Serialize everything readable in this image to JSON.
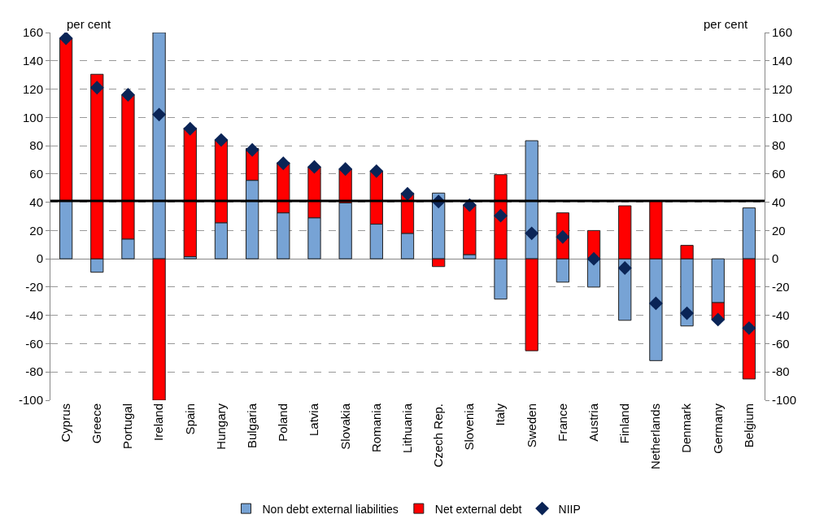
{
  "chart_data": {
    "type": "bar",
    "stacked": true,
    "categories": [
      "Cyprus",
      "Greece",
      "Portugal",
      "Ireland",
      "Spain",
      "Hungary",
      "Bulgaria",
      "Poland",
      "Latvia",
      "Slovakia",
      "Romania",
      "Lithuania",
      "Czech Rep.",
      "Slovenia",
      "Italy",
      "Sweden",
      "France",
      "Austria",
      "Finland",
      "Netherlands",
      "Denmark",
      "Germany",
      "Belgium"
    ],
    "series": [
      {
        "name": "Non debt external liabilities",
        "color": "#77a3d5",
        "values": [
          41,
          -9.5,
          14,
          160,
          1.5,
          25.5,
          55.5,
          32.5,
          29,
          39.5,
          24.5,
          18,
          46.5,
          3,
          -28.5,
          83.5,
          -16.5,
          -20,
          -43.5,
          -72,
          -47.5,
          -31,
          36
        ]
      },
      {
        "name": "Net external debt",
        "color": "#ff0000",
        "values": [
          115,
          130.5,
          102,
          -100,
          91,
          58.5,
          22.5,
          35.5,
          36,
          24,
          37.5,
          28.5,
          -5.5,
          35,
          59.5,
          -65,
          32.5,
          20,
          37.5,
          41,
          9.5,
          -12,
          -85
        ]
      },
      {
        "name": "NIIP",
        "type": "scatter",
        "marker": "diamond",
        "color": "#0a2456",
        "values": [
          156,
          121,
          116,
          102,
          92,
          84,
          77,
          67.5,
          65,
          63.5,
          62,
          46,
          40.5,
          38,
          30.5,
          18,
          15.5,
          0,
          -6.5,
          -31.5,
          -38.5,
          -43,
          -49
        ]
      }
    ],
    "ylabel": "per cent",
    "y2label": "per cent",
    "ylim": [
      -100,
      160
    ],
    "yticks": [
      -100,
      -80,
      -60,
      -40,
      -20,
      0,
      20,
      40,
      60,
      80,
      100,
      120,
      140,
      160
    ],
    "y2lim": [
      -100,
      160
    ],
    "y2ticks": [
      -100,
      -80,
      -60,
      -40,
      -20,
      0,
      20,
      40,
      60,
      80,
      100,
      120,
      140,
      160
    ],
    "ref_lines": [
      {
        "axis": "y",
        "value": 41,
        "color": "#000000"
      }
    ],
    "grid": "y",
    "legend": "bottom"
  }
}
